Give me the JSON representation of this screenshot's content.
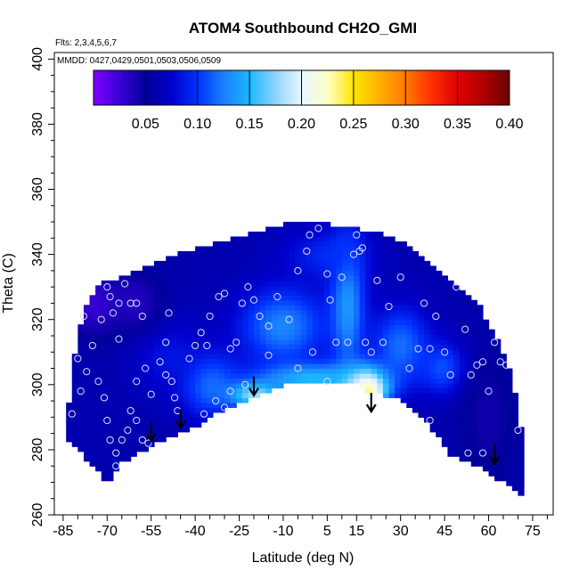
{
  "chart_data": {
    "type": "heatmap",
    "title": "ATOM4 Southbound CH2O_GMI",
    "flights_note": "Flts: 2,3,4,5,6,7",
    "dates_note": "MMDD: 0427,0429,0501,0503,0506,0509",
    "xlabel": "Latitude (deg N)",
    "ylabel": "Theta (C)",
    "xlim": [
      -88,
      82
    ],
    "ylim": [
      260,
      402
    ],
    "x_ticks": [
      -85,
      -70,
      -55,
      -40,
      -25,
      -10,
      5,
      15,
      30,
      45,
      60,
      75
    ],
    "y_ticks": [
      260,
      280,
      300,
      320,
      340,
      360,
      380,
      400
    ],
    "colorbar": {
      "min": 0.0,
      "max": 0.4,
      "ticks": [
        0.05,
        0.1,
        0.15,
        0.2,
        0.25,
        0.3,
        0.35,
        0.4
      ],
      "colors": [
        "#7f00ff",
        "#3a00d8",
        "#00009a",
        "#0000cc",
        "#0033ff",
        "#1a7fff",
        "#1ab6ff",
        "#8fd4ff",
        "#e8f6ff",
        "#ffffc8",
        "#ffe600",
        "#ffb000",
        "#ff7a00",
        "#ff3000",
        "#e00000",
        "#b00000",
        "#6a0000"
      ]
    },
    "boundary_top": [
      [
        -84,
        286
      ],
      [
        -82,
        303
      ],
      [
        -80,
        316
      ],
      [
        -77,
        325
      ],
      [
        -72,
        331
      ],
      [
        -65,
        333
      ],
      [
        -58,
        336
      ],
      [
        -50,
        339
      ],
      [
        -43,
        341
      ],
      [
        -35,
        343
      ],
      [
        -28,
        345
      ],
      [
        -22,
        346
      ],
      [
        -15,
        348
      ],
      [
        -8,
        350
      ],
      [
        0,
        350
      ],
      [
        8,
        349
      ],
      [
        15,
        348
      ],
      [
        20,
        347
      ],
      [
        25,
        346
      ],
      [
        30,
        344
      ],
      [
        36,
        340
      ],
      [
        42,
        336
      ],
      [
        48,
        332
      ],
      [
        53,
        328
      ],
      [
        57,
        324
      ],
      [
        60,
        319
      ],
      [
        63,
        314
      ],
      [
        66,
        308
      ],
      [
        68,
        302
      ],
      [
        70,
        294
      ],
      [
        71,
        287
      ],
      [
        72,
        268
      ]
    ],
    "boundary_bottom": [
      [
        72,
        266
      ],
      [
        65,
        270
      ],
      [
        58,
        274
      ],
      [
        52,
        277
      ],
      [
        47,
        278
      ],
      [
        43,
        284
      ],
      [
        38,
        289
      ],
      [
        33,
        293
      ],
      [
        28,
        296
      ],
      [
        22,
        297
      ],
      [
        17,
        299
      ],
      [
        12,
        301
      ],
      [
        6,
        301
      ],
      [
        0,
        301
      ],
      [
        -5,
        300
      ],
      [
        -10,
        300
      ],
      [
        -15,
        298
      ],
      [
        -20,
        296
      ],
      [
        -25,
        294
      ],
      [
        -30,
        292
      ],
      [
        -35,
        290
      ],
      [
        -40,
        287
      ],
      [
        -45,
        285
      ],
      [
        -50,
        283
      ],
      [
        -55,
        281
      ],
      [
        -60,
        279
      ],
      [
        -65,
        276
      ],
      [
        -68,
        273
      ],
      [
        -70,
        269
      ],
      [
        -72,
        272
      ],
      [
        -76,
        276
      ],
      [
        -80,
        280
      ],
      [
        -84,
        284
      ]
    ],
    "field_sources": [
      {
        "lat": -20,
        "theta": 297,
        "value": 0.21,
        "spread_lat": 10,
        "spread_theta": 4
      },
      {
        "lat": 17,
        "theta": 298,
        "value": 0.3,
        "spread_lat": 6,
        "spread_theta": 4
      },
      {
        "lat": 18,
        "theta": 300,
        "value": 0.27,
        "spread_lat": 8,
        "spread_theta": 6
      },
      {
        "lat": 0,
        "theta": 302,
        "value": 0.17,
        "spread_lat": 20,
        "spread_theta": 5
      },
      {
        "lat": 12,
        "theta": 325,
        "value": 0.15,
        "spread_lat": 6,
        "spread_theta": 22
      },
      {
        "lat": -10,
        "theta": 318,
        "value": 0.14,
        "spread_lat": 15,
        "spread_theta": 12
      },
      {
        "lat": -35,
        "theta": 300,
        "value": 0.13,
        "spread_lat": 10,
        "spread_theta": 10
      },
      {
        "lat": 30,
        "theta": 312,
        "value": 0.13,
        "spread_lat": 10,
        "spread_theta": 12
      },
      {
        "lat": 45,
        "theta": 305,
        "value": 0.12,
        "spread_lat": 8,
        "spread_theta": 8
      },
      {
        "lat": -50,
        "theta": 310,
        "value": 0.09,
        "spread_lat": 12,
        "spread_theta": 12
      },
      {
        "lat": 5,
        "theta": 340,
        "value": 0.1,
        "spread_lat": 15,
        "spread_theta": 8
      },
      {
        "lat": -75,
        "theta": 325,
        "value": 0.02,
        "spread_lat": 10,
        "spread_theta": 10
      },
      {
        "lat": -60,
        "theta": 325,
        "value": 0.03,
        "spread_lat": 10,
        "spread_theta": 10
      },
      {
        "lat": 60,
        "theta": 290,
        "value": 0.04,
        "spread_lat": 10,
        "spread_theta": 20
      }
    ],
    "field_background": 0.06,
    "sample_points": [
      [
        -80,
        308
      ],
      [
        -78,
        321
      ],
      [
        -75,
        312
      ],
      [
        -72,
        320
      ],
      [
        -70,
        330
      ],
      [
        -69,
        327
      ],
      [
        -68,
        322
      ],
      [
        -66,
        314
      ],
      [
        -66,
        325
      ],
      [
        -64,
        331
      ],
      [
        -62,
        325
      ],
      [
        -60,
        325
      ],
      [
        -58,
        321
      ],
      [
        -57,
        305
      ],
      [
        -60,
        301
      ],
      [
        -55,
        297
      ],
      [
        -52,
        307
      ],
      [
        -50,
        313
      ],
      [
        -49,
        322
      ],
      [
        -50,
        303
      ],
      [
        -48,
        301
      ],
      [
        -47,
        296
      ],
      [
        -46,
        292
      ],
      [
        -45,
        283
      ],
      [
        -44,
        285
      ],
      [
        -42,
        308
      ],
      [
        -40,
        312
      ],
      [
        -38,
        316
      ],
      [
        -36,
        312
      ],
      [
        -35,
        321
      ],
      [
        -32,
        327
      ],
      [
        -30,
        328
      ],
      [
        -28,
        311
      ],
      [
        -26,
        313
      ],
      [
        -24,
        325
      ],
      [
        -22,
        330
      ],
      [
        -20,
        326
      ],
      [
        -18,
        321
      ],
      [
        -15,
        318
      ],
      [
        -12,
        327
      ],
      [
        -8,
        320
      ],
      [
        -5,
        335
      ],
      [
        -2,
        341
      ],
      [
        -1,
        346
      ],
      [
        2,
        348
      ],
      [
        5,
        334
      ],
      [
        6,
        326
      ],
      [
        8,
        313
      ],
      [
        10,
        333
      ],
      [
        12,
        313
      ],
      [
        14,
        340
      ],
      [
        15,
        346
      ],
      [
        16,
        341
      ],
      [
        17,
        342
      ],
      [
        18,
        313
      ],
      [
        20,
        310
      ],
      [
        22,
        332
      ],
      [
        24,
        313
      ],
      [
        26,
        324
      ],
      [
        28,
        346
      ],
      [
        30,
        333
      ],
      [
        33,
        305
      ],
      [
        36,
        311
      ],
      [
        38,
        325
      ],
      [
        40,
        311
      ],
      [
        42,
        321
      ],
      [
        45,
        310
      ],
      [
        47,
        303
      ],
      [
        49,
        330
      ],
      [
        52,
        317
      ],
      [
        54,
        303
      ],
      [
        56,
        306
      ],
      [
        58,
        307
      ],
      [
        60,
        298
      ],
      [
        62,
        313
      ],
      [
        64,
        307
      ],
      [
        66,
        306
      ],
      [
        -86,
        289
      ],
      [
        -82,
        291
      ],
      [
        -79,
        298
      ],
      [
        -77,
        304
      ],
      [
        -73,
        301
      ],
      [
        -71,
        296
      ],
      [
        -70,
        289
      ],
      [
        -69,
        283
      ],
      [
        -67,
        279
      ],
      [
        -67,
        275
      ],
      [
        -65,
        283
      ],
      [
        -63,
        286
      ],
      [
        -62,
        292
      ],
      [
        -60,
        289
      ],
      [
        -58,
        283
      ],
      [
        -56,
        282
      ],
      [
        -54,
        281
      ],
      [
        -52,
        280
      ],
      [
        -48,
        282
      ],
      [
        -45,
        279
      ],
      [
        -37,
        291
      ],
      [
        -30,
        293
      ],
      [
        -5,
        305
      ],
      [
        5,
        301
      ],
      [
        11,
        299
      ],
      [
        20,
        293
      ],
      [
        30,
        286
      ],
      [
        40,
        289
      ],
      [
        53,
        279
      ],
      [
        58,
        279
      ],
      [
        70,
        286
      ],
      [
        -23,
        300
      ],
      [
        -28,
        298
      ],
      [
        -33,
        295
      ],
      [
        -15,
        309
      ],
      [
        0,
        310
      ]
    ],
    "arrows": [
      [
        -55,
        283
      ],
      [
        -45,
        287
      ],
      [
        -20,
        297
      ],
      [
        20,
        292
      ],
      [
        62,
        276
      ]
    ]
  }
}
